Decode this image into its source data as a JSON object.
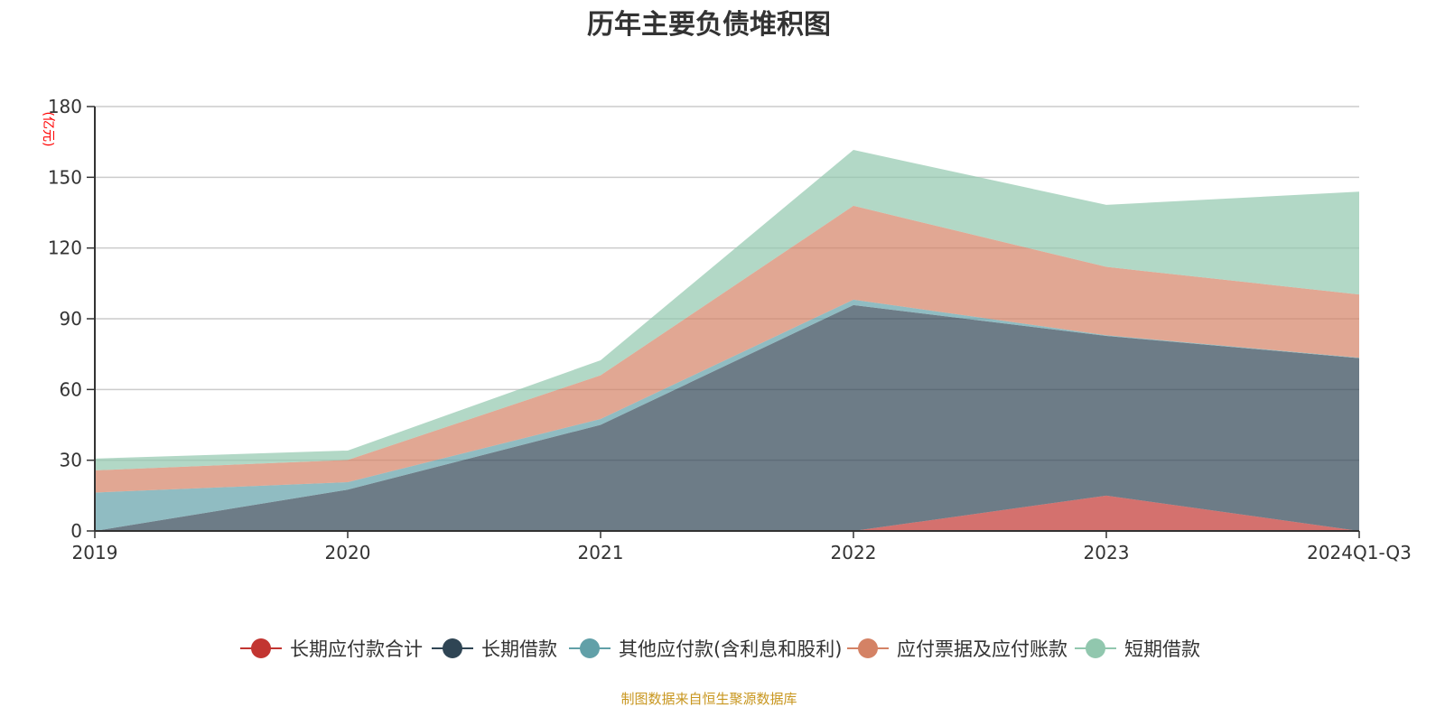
{
  "chart_data": {
    "type": "area",
    "stacked": true,
    "title": "历年主要负债堆积图",
    "ylabel": "(亿元)",
    "xlabel": "",
    "ylim": [
      0,
      180
    ],
    "yticks": [
      0,
      30,
      60,
      90,
      120,
      150,
      180
    ],
    "grid": true,
    "legend_position": "bottom",
    "categories": [
      "2019",
      "2020",
      "2021",
      "2022",
      "2023",
      "2024Q1-Q3"
    ],
    "series": [
      {
        "name": "长期应付款合计",
        "color": "#c23531",
        "values": [
          0,
          0,
          0,
          0,
          15,
          0
        ]
      },
      {
        "name": "长期借款",
        "color": "#2f4554",
        "values": [
          0,
          17.5,
          45,
          95.8,
          67.7,
          73.3
        ]
      },
      {
        "name": "其他应付款(含利息和股利)",
        "color": "#61a0a8",
        "values": [
          16.3,
          3.2,
          2.5,
          2.3,
          0.3,
          0.2
        ]
      },
      {
        "name": "应付票据及应付账款",
        "color": "#d48265",
        "values": [
          9.4,
          9.4,
          18.5,
          39.8,
          29,
          26.8
        ]
      },
      {
        "name": "短期借款",
        "color": "#91c7ae",
        "values": [
          5,
          4,
          6.4,
          23.7,
          26.3,
          43.6
        ]
      }
    ]
  },
  "footer": {
    "source": "制图数据来自恒生聚源数据库",
    "color": "#c8961e"
  }
}
